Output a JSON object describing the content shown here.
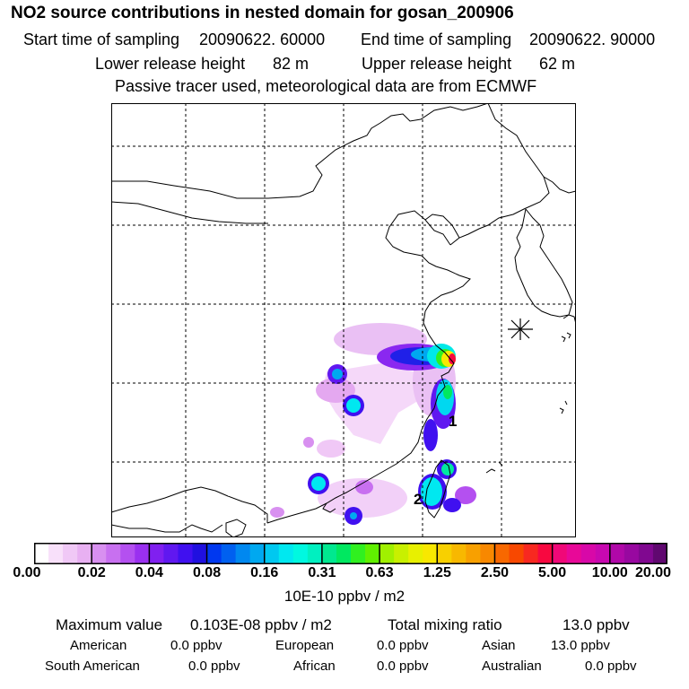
{
  "header": {
    "title": "NO2 source contributions in nested domain for gosan_200906",
    "start_label": "Start time of sampling",
    "start_value": "20090622. 60000",
    "end_label": "End time of sampling",
    "end_value": "20090622. 90000",
    "lower_label": "Lower release height",
    "lower_value": "82 m",
    "upper_label": "Upper release height",
    "upper_value": "62 m",
    "tracer_note": "Passive tracer used, meteorological data are from ECMWF"
  },
  "map": {
    "labels": [
      "1",
      "2"
    ],
    "colors": {
      "coast": "#000000",
      "grid": "#000000",
      "background": "#ffffff"
    }
  },
  "colorbar": {
    "ticks": [
      "0.00",
      "0.02",
      "0.04",
      "0.08",
      "0.16",
      "0.31",
      "0.63",
      "1.25",
      "2.50",
      "5.00",
      "10.00",
      "20.00"
    ],
    "colors": [
      "#ffffff",
      "#f8e0fa",
      "#f0c8f6",
      "#e8b0f2",
      "#d890f0",
      "#c870f0",
      "#b450f0",
      "#9a30f0",
      "#8020f0",
      "#6018f0",
      "#4010f0",
      "#2010e0",
      "#0038f0",
      "#0060f0",
      "#0088f0",
      "#00a8f0",
      "#00c8f0",
      "#00e8f0",
      "#00f8e0",
      "#00f0c0",
      "#00e890",
      "#00e860",
      "#30f020",
      "#60f000",
      "#a0f000",
      "#c8f000",
      "#e8f000",
      "#f8e800",
      "#f8d000",
      "#f8b800",
      "#f8a000",
      "#f88800",
      "#f86800",
      "#f84800",
      "#f82820",
      "#f80840",
      "#f00878",
      "#e80898",
      "#d808a8",
      "#c808b0",
      "#b008a8",
      "#9808a0",
      "#800890",
      "#600870"
    ],
    "unit": "10E-10 ppbv / m2"
  },
  "summary": {
    "max_label": "Maximum value",
    "max_value": "0.103E-08 ppbv / m2",
    "total_label": "Total mixing ratio",
    "total_value": "13.0 ppbv",
    "american_label": "American",
    "american_value": "0.0 ppbv",
    "european_label": "European",
    "european_value": "0.0 ppbv",
    "asian_label": "Asian",
    "asian_value": "13.0 ppbv",
    "south_american_label": "South American",
    "south_american_value": "0.0 ppbv",
    "african_label": "African",
    "african_value": "0.0 ppbv",
    "australian_label": "Australian",
    "australian_value": "0.0 ppbv"
  }
}
